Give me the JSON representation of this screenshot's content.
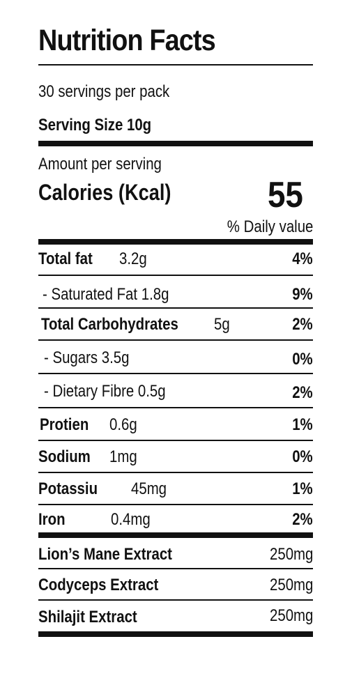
{
  "title": "Nutrition Facts",
  "servings_per_pack": "30 servings per pack",
  "serving_size": "Serving Size 10g",
  "amount_per_serving": "Amount per serving",
  "calories_label": "Calories (Kcal)",
  "calories_value": "55",
  "daily_value_header": "% Daily value",
  "rows": [
    {
      "label": "Total fat",
      "amount": "3.2g",
      "dv": "4%"
    },
    {
      "label": "- Saturated Fat 1.8g",
      "amount": "",
      "dv": "9%"
    },
    {
      "label": "Total Carbohydrates",
      "amount": "5g",
      "dv": "2%"
    },
    {
      "label": "- Sugars 3.5g",
      "amount": "",
      "dv": "0%"
    },
    {
      "label": "- Dietary Fibre 0.5g",
      "amount": "",
      "dv": "2%"
    },
    {
      "label": "Protien",
      "amount": "0.6g",
      "dv": "1%"
    },
    {
      "label": "Sodium",
      "amount": "1mg",
      "dv": "0%"
    },
    {
      "label": "Potassiu",
      "amount": "45mg",
      "dv": "1%"
    },
    {
      "label": "Iron",
      "amount": "0.4mg",
      "dv": "2%"
    }
  ],
  "extracts": [
    {
      "label": "Lion’s Mane Extract",
      "amount": "250mg"
    },
    {
      "label": "Codyceps Extract",
      "amount": "250mg"
    },
    {
      "label": "Shilajit Extract",
      "amount": "250mg"
    }
  ]
}
